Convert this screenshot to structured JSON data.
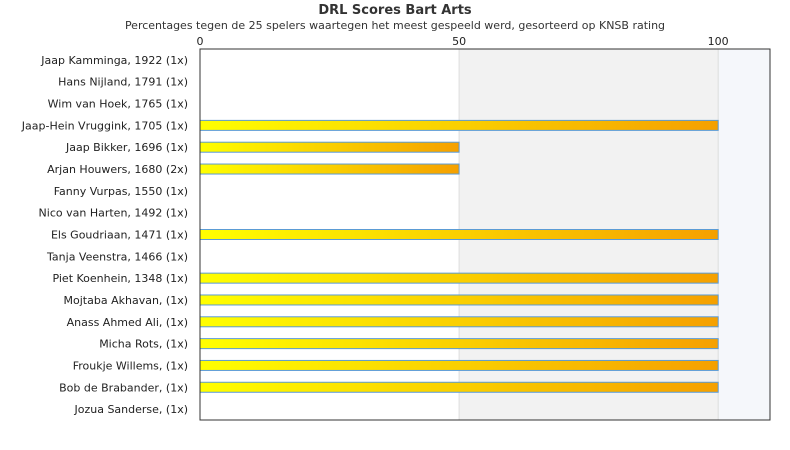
{
  "chart_data": {
    "type": "bar",
    "orientation": "horizontal",
    "title": "DRL Scores Bart Arts",
    "subtitle": "Percentages tegen de 25 spelers waartegen het meest gespeeld werd, gesorteerd op KNSB rating",
    "categories": [
      "Jaap Kamminga, 1922 (1x)",
      "Hans Nijland, 1791 (1x)",
      "Wim van Hoek, 1765 (1x)",
      "Jaap-Hein Vruggink, 1705 (1x)",
      "Jaap Bikker, 1696 (1x)",
      "Arjan Houwers, 1680 (2x)",
      "Fanny Vurpas, 1550 (1x)",
      "Nico van Harten, 1492 (1x)",
      "Els Goudriaan, 1471 (1x)",
      "Tanja Veenstra, 1466 (1x)",
      "Piet Koenhein, 1348 (1x)",
      "Mojtaba Akhavan,  (1x)",
      "Anass Ahmed Ali,  (1x)",
      "Micha Rots,  (1x)",
      "Froukje Willems,  (1x)",
      "Bob de Brabander,  (1x)",
      "Jozua Sanderse,  (1x)"
    ],
    "values": [
      0,
      0,
      0,
      100,
      50,
      50,
      0,
      0,
      100,
      0,
      100,
      100,
      100,
      100,
      100,
      100,
      0
    ],
    "xlim": [
      0,
      110
    ],
    "xticks": [
      0,
      50,
      100
    ],
    "xtick_labels": [
      "0",
      "50",
      "100"
    ],
    "colors": {
      "bar_start": "#ffff00",
      "bar_end": "#f5a000",
      "bar_stroke": "#5b9bd5",
      "band": "#f2f2f2",
      "band_far": "#f5f7fb",
      "gridline": "#dddddd",
      "frame": "#333333"
    }
  }
}
